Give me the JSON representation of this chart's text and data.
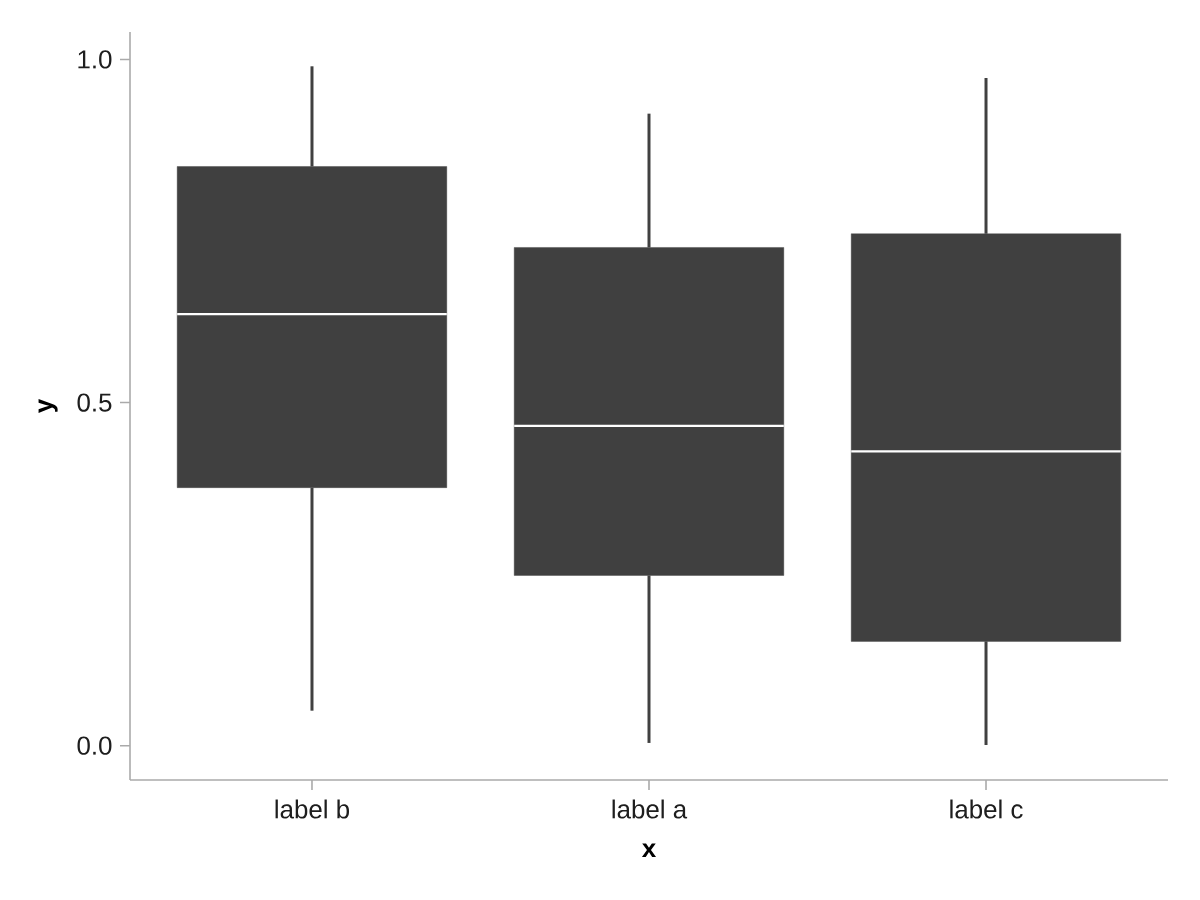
{
  "chart_data": {
    "type": "box",
    "xlabel": "x",
    "ylabel": "y",
    "categories": [
      "label b",
      "label a",
      "label c"
    ],
    "color": "#404040",
    "boxes": [
      {
        "low": 0.051,
        "q1": 0.376,
        "median": 0.629,
        "q3": 0.844,
        "high": 0.99
      },
      {
        "low": 0.004,
        "q1": 0.248,
        "median": 0.466,
        "q3": 0.726,
        "high": 0.921
      },
      {
        "low": 0.001,
        "q1": 0.152,
        "median": 0.429,
        "q3": 0.746,
        "high": 0.973
      }
    ],
    "ylim": [
      -0.05,
      1.04
    ],
    "yticks": [
      {
        "value": 0,
        "label": "0.0"
      },
      {
        "value": 0.5,
        "label": "0.5"
      },
      {
        "value": 1,
        "label": "1.0"
      }
    ]
  }
}
